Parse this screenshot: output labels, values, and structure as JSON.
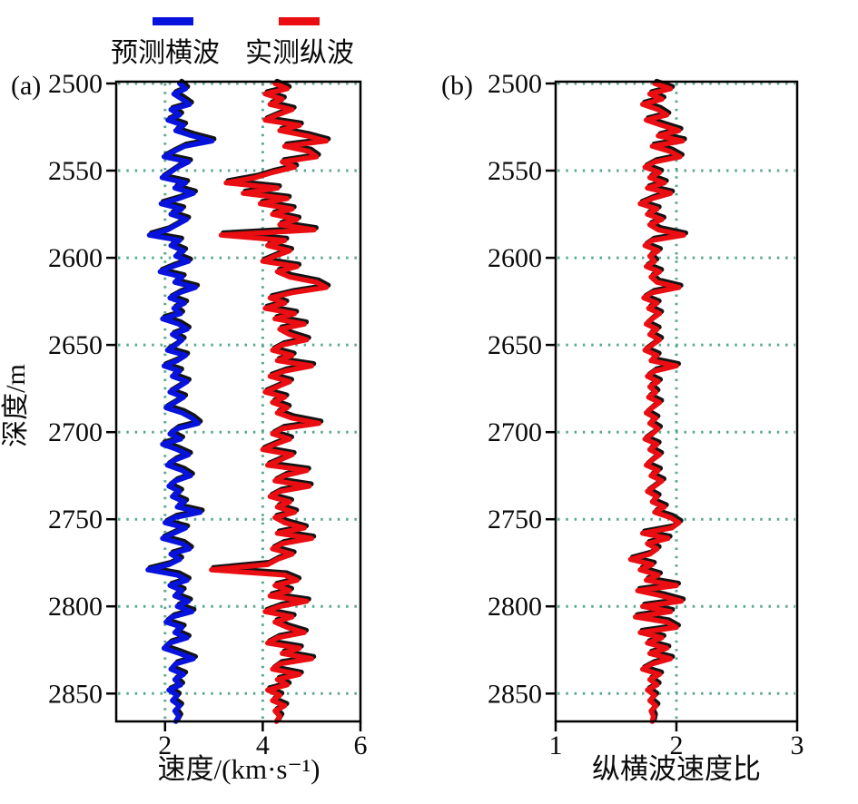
{
  "legend": {
    "items": [
      {
        "label": "预测横波",
        "color": "#0712dc"
      },
      {
        "label": "实测纵波",
        "color": "#ea0d11"
      }
    ]
  },
  "panels": {
    "a": {
      "tag": "(a)",
      "ylabel": "深度/m"
    },
    "b": {
      "tag": "(b)"
    }
  },
  "colors": {
    "grid": "#4d9e85",
    "frame": "#000000",
    "shadow": "#141414",
    "background": "#ffffff",
    "tick_text": "#0b0b0b",
    "curve_blue": "#0712dc",
    "curve_red": "#ea0d11"
  },
  "chart_data": [
    {
      "type": "line",
      "panel": "(a)",
      "orientation": "depth_log_vertical",
      "xlabel": "速度/(km·s⁻¹)",
      "ylabel": "深度/m",
      "xlim": [
        1,
        6
      ],
      "ylim": [
        2500,
        2866
      ],
      "x_ticks": [
        2,
        4,
        6
      ],
      "y_ticks": [
        2500,
        2550,
        2600,
        2650,
        2700,
        2750,
        2800,
        2850
      ],
      "grid": "dotted",
      "legend_position": "top",
      "depth_start": 2500,
      "depth_step": 3,
      "series": [
        {
          "name": "预测横波",
          "color": "#0712dc",
          "values": [
            2.3,
            2.42,
            2.18,
            2.35,
            2.5,
            2.12,
            2.3,
            2.06,
            2.38,
            2.22,
            2.55,
            2.96,
            2.4,
            2.18,
            1.98,
            2.48,
            2.26,
            2.1,
            1.94,
            2.42,
            2.2,
            2.58,
            2.28,
            1.92,
            2.34,
            2.12,
            2.44,
            2.24,
            2.05,
            1.68,
            2.3,
            2.12,
            2.38,
            2.22,
            2.48,
            2.15,
            1.9,
            2.35,
            2.2,
            2.62,
            2.3,
            2.1,
            2.4,
            2.18,
            2.32,
            1.95,
            2.28,
            2.45,
            2.15,
            2.35,
            2.22,
            2.05,
            2.42,
            2.25,
            1.98,
            2.3,
            2.15,
            2.45,
            2.28,
            2.1,
            2.38,
            2.2,
            2.02,
            2.35,
            2.55,
            2.68,
            2.25,
            2.1,
            2.32,
            1.95,
            2.25,
            2.48,
            2.2,
            2.05,
            2.35,
            2.52,
            2.22,
            2.08,
            2.3,
            2.15,
            2.4,
            2.25,
            2.72,
            2.2,
            2.0,
            2.42,
            2.18,
            1.95,
            2.35,
            2.5,
            2.12,
            2.3,
            2.08,
            1.65,
            2.25,
            2.45,
            2.1,
            2.35,
            2.2,
            2.48,
            2.25,
            2.55,
            2.15,
            2.02,
            2.35,
            2.2,
            2.45,
            2.1,
            1.98,
            2.3,
            2.58,
            2.22,
            2.12,
            2.38,
            2.2,
            2.32,
            2.08,
            2.25,
            2.15,
            2.3,
            2.2,
            2.28,
            2.22
          ]
        },
        {
          "name": "实测纵波",
          "color": "#ea0d11",
          "values": [
            4.25,
            4.5,
            4.05,
            4.4,
            4.15,
            4.6,
            4.3,
            4.05,
            4.75,
            4.35,
            4.9,
            5.3,
            4.45,
            4.95,
            5.1,
            4.4,
            4.65,
            4.2,
            3.85,
            3.25,
            4.3,
            3.6,
            4.5,
            3.95,
            4.6,
            4.2,
            4.7,
            4.35,
            5.05,
            3.15,
            4.45,
            4.1,
            4.55,
            4.25,
            4.0,
            4.7,
            4.3,
            4.55,
            5.1,
            5.3,
            4.6,
            4.15,
            4.45,
            4.05,
            4.65,
            4.25,
            4.85,
            4.35,
            4.55,
            4.9,
            4.4,
            4.2,
            4.6,
            4.3,
            5.0,
            4.45,
            4.15,
            4.55,
            4.3,
            4.05,
            4.45,
            4.2,
            4.5,
            4.3,
            4.6,
            5.15,
            4.4,
            4.2,
            4.55,
            4.25,
            4.0,
            4.6,
            4.35,
            4.1,
            4.9,
            4.45,
            4.25,
            4.95,
            4.35,
            4.15,
            4.55,
            4.3,
            4.65,
            4.25,
            4.45,
            4.85,
            4.3,
            5.0,
            4.4,
            4.2,
            4.6,
            4.3,
            4.1,
            2.95,
            4.45,
            4.7,
            4.25,
            4.55,
            4.15,
            4.9,
            4.35,
            4.05,
            4.6,
            4.25,
            4.5,
            4.85,
            4.3,
            4.1,
            4.75,
            4.4,
            5.0,
            4.35,
            4.2,
            4.75,
            4.3,
            4.5,
            4.1,
            4.35,
            4.2,
            4.45,
            4.25,
            4.35,
            4.28
          ]
        }
      ]
    },
    {
      "type": "line",
      "panel": "(b)",
      "orientation": "depth_log_vertical",
      "xlabel": "纵横波速度比",
      "xlim": [
        1,
        3
      ],
      "ylim": [
        2500,
        2866
      ],
      "x_ticks": [
        1,
        2,
        3
      ],
      "y_ticks": [
        2500,
        2550,
        2600,
        2650,
        2700,
        2750,
        2800,
        2850
      ],
      "grid": "dotted",
      "depth_start": 2500,
      "depth_step": 3,
      "series": [
        {
          "name": "纵横波速度比",
          "color": "#ea0d11",
          "values": [
            1.82,
            1.95,
            1.78,
            1.88,
            1.72,
            1.85,
            1.92,
            1.75,
            1.88,
            2.02,
            1.85,
            2.05,
            1.8,
            1.95,
            2.03,
            1.82,
            1.74,
            1.86,
            1.78,
            1.9,
            1.76,
            1.95,
            1.8,
            1.7,
            1.84,
            1.76,
            1.88,
            1.78,
            1.85,
            2.06,
            1.8,
            1.74,
            1.85,
            1.78,
            1.82,
            1.75,
            1.86,
            1.79,
            1.84,
            2.02,
            1.8,
            1.73,
            1.84,
            1.77,
            1.86,
            1.8,
            1.75,
            1.84,
            1.78,
            1.86,
            1.8,
            1.74,
            1.84,
            1.79,
            2.0,
            1.82,
            1.76,
            1.85,
            1.78,
            1.83,
            1.77,
            1.86,
            1.8,
            1.75,
            1.83,
            1.78,
            1.85,
            1.8,
            1.74,
            1.84,
            1.78,
            1.86,
            1.8,
            1.75,
            1.85,
            1.79,
            1.88,
            1.82,
            1.76,
            1.84,
            1.8,
            1.9,
            1.82,
            1.95,
            2.02,
            1.96,
            1.72,
            1.93,
            1.76,
            1.84,
            1.78,
            1.62,
            1.8,
            1.7,
            1.85,
            1.75,
            2.0,
            1.68,
            1.88,
            2.04,
            1.72,
            1.95,
            1.66,
            1.92,
            2.0,
            1.7,
            1.88,
            1.76,
            1.92,
            1.78,
            1.95,
            1.8,
            1.72,
            1.86,
            1.78,
            1.84,
            1.76,
            1.82,
            1.78,
            1.83,
            1.79,
            1.81,
            1.8
          ]
        }
      ]
    }
  ]
}
